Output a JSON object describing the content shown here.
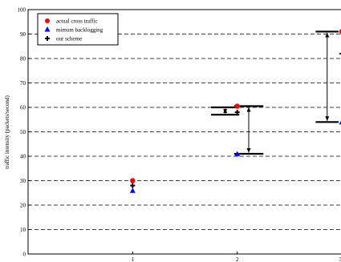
{
  "chart_data": {
    "type": "scatter",
    "title": "",
    "xlabel": "",
    "ylabel": "traffic intensity (packets/second)",
    "xlim": [
      0,
      3
    ],
    "ylim": [
      0,
      100
    ],
    "x_ticks": [
      "1",
      "2",
      "3"
    ],
    "y_ticks": [
      "0",
      "10",
      "20",
      "30",
      "40",
      "50",
      "60",
      "70",
      "80",
      "90",
      "100"
    ],
    "grid": "horizontal dashed",
    "legend_position": "top-left",
    "series": [
      {
        "name": "actual cross traffic",
        "marker": "circle",
        "color": "#ff0000",
        "points": [
          {
            "x": 1,
            "y": 30
          },
          {
            "x": 2,
            "y": 60.5
          },
          {
            "x": 3,
            "y": 91
          }
        ]
      },
      {
        "name": "mimum backlogging",
        "marker": "triangle",
        "color": "#0000ff",
        "points": [
          {
            "x": 1,
            "y": 26
          },
          {
            "x": 2,
            "y": 41
          },
          {
            "x": 3,
            "y": 54
          }
        ]
      },
      {
        "name": "our scheme",
        "marker": "cross",
        "color": "#000000",
        "points": [
          {
            "x": 1,
            "y": 28
          },
          {
            "x": 2,
            "y": 58
          },
          {
            "x": 3,
            "y": 82
          }
        ]
      }
    ],
    "intervals": [
      {
        "x_from": 1.75,
        "x_to": 2.02,
        "low": 57,
        "high": 60
      },
      {
        "x_from": 1.97,
        "x_to": 2.25,
        "low": 41,
        "high": 60.5
      },
      {
        "x_from": 2.75,
        "x_to": 2.97,
        "low": 54,
        "high": 91
      }
    ]
  }
}
